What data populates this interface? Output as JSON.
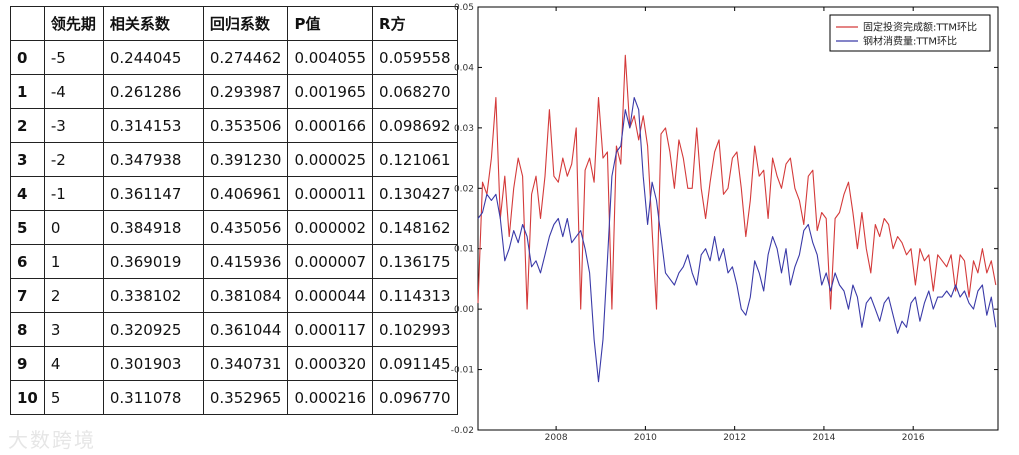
{
  "table": {
    "columns": [
      "",
      "领先期",
      "相关系数",
      "回归系数",
      "P值",
      "R方"
    ],
    "rows": [
      [
        "0",
        "-5",
        "0.244045",
        "0.274462",
        "0.004055",
        "0.059558"
      ],
      [
        "1",
        "-4",
        "0.261286",
        "0.293987",
        "0.001965",
        "0.068270"
      ],
      [
        "2",
        "-3",
        "0.314153",
        "0.353506",
        "0.000166",
        "0.098692"
      ],
      [
        "3",
        "-2",
        "0.347938",
        "0.391230",
        "0.000025",
        "0.121061"
      ],
      [
        "4",
        "-1",
        "0.361147",
        "0.406961",
        "0.000011",
        "0.130427"
      ],
      [
        "5",
        "0",
        "0.384918",
        "0.435056",
        "0.000002",
        "0.148162"
      ],
      [
        "6",
        "1",
        "0.369019",
        "0.415936",
        "0.000007",
        "0.136175"
      ],
      [
        "7",
        "2",
        "0.338102",
        "0.381084",
        "0.000044",
        "0.114313"
      ],
      [
        "8",
        "3",
        "0.320925",
        "0.361044",
        "0.000117",
        "0.102993"
      ],
      [
        "9",
        "4",
        "0.301903",
        "0.340731",
        "0.000320",
        "0.091145"
      ],
      [
        "10",
        "5",
        "0.311078",
        "0.352965",
        "0.000216",
        "0.096770"
      ]
    ]
  },
  "chart_data": {
    "type": "line",
    "title": "",
    "xlabel": "",
    "ylabel": "",
    "xlim": [
      2006.25,
      2017.9
    ],
    "ylim": [
      -0.02,
      0.05
    ],
    "x_ticks": [
      "2008",
      "2010",
      "2012",
      "2014",
      "2016"
    ],
    "y_ticks": [
      "0.05",
      "0.04",
      "0.03",
      "0.02",
      "0.01",
      "0.00",
      "-0.01",
      "-0.02"
    ],
    "y_tick_values": [
      0.05,
      0.04,
      0.03,
      0.02,
      0.01,
      0.0,
      -0.01,
      -0.02
    ],
    "grid": false,
    "legend_position": "top-right",
    "series": [
      {
        "name": "固定投资完成额:TTM环比",
        "color": "#d43a3a",
        "points": [
          [
            2006.25,
            0.001
          ],
          [
            2006.35,
            0.021
          ],
          [
            2006.45,
            0.019
          ],
          [
            2006.55,
            0.025
          ],
          [
            2006.65,
            0.035
          ],
          [
            2006.75,
            0.015
          ],
          [
            2006.85,
            0.022
          ],
          [
            2006.95,
            0.012
          ],
          [
            2007.05,
            0.02
          ],
          [
            2007.15,
            0.025
          ],
          [
            2007.25,
            0.022
          ],
          [
            2007.35,
            0.0
          ],
          [
            2007.45,
            0.019
          ],
          [
            2007.55,
            0.022
          ],
          [
            2007.65,
            0.015
          ],
          [
            2007.75,
            0.022
          ],
          [
            2007.85,
            0.033
          ],
          [
            2007.95,
            0.022
          ],
          [
            2008.05,
            0.021
          ],
          [
            2008.15,
            0.025
          ],
          [
            2008.25,
            0.022
          ],
          [
            2008.35,
            0.024
          ],
          [
            2008.45,
            0.03
          ],
          [
            2008.55,
            0.0
          ],
          [
            2008.65,
            0.023
          ],
          [
            2008.75,
            0.025
          ],
          [
            2008.85,
            0.021
          ],
          [
            2008.95,
            0.035
          ],
          [
            2009.05,
            0.025
          ],
          [
            2009.15,
            0.026
          ],
          [
            2009.25,
            0.0
          ],
          [
            2009.35,
            0.027
          ],
          [
            2009.45,
            0.024
          ],
          [
            2009.55,
            0.042
          ],
          [
            2009.65,
            0.03
          ],
          [
            2009.75,
            0.032
          ],
          [
            2009.85,
            0.028
          ],
          [
            2009.95,
            0.032
          ],
          [
            2010.05,
            0.027
          ],
          [
            2010.15,
            0.013
          ],
          [
            2010.25,
            0.0
          ],
          [
            2010.35,
            0.029
          ],
          [
            2010.45,
            0.03
          ],
          [
            2010.55,
            0.026
          ],
          [
            2010.65,
            0.02
          ],
          [
            2010.75,
            0.028
          ],
          [
            2010.85,
            0.025
          ],
          [
            2010.95,
            0.02
          ],
          [
            2011.05,
            0.02
          ],
          [
            2011.15,
            0.03
          ],
          [
            2011.25,
            0.02
          ],
          [
            2011.35,
            0.015
          ],
          [
            2011.45,
            0.021
          ],
          [
            2011.55,
            0.026
          ],
          [
            2011.65,
            0.028
          ],
          [
            2011.75,
            0.019
          ],
          [
            2011.85,
            0.02
          ],
          [
            2011.95,
            0.025
          ],
          [
            2012.05,
            0.026
          ],
          [
            2012.15,
            0.02
          ],
          [
            2012.25,
            0.012
          ],
          [
            2012.35,
            0.018
          ],
          [
            2012.45,
            0.027
          ],
          [
            2012.55,
            0.022
          ],
          [
            2012.65,
            0.023
          ],
          [
            2012.75,
            0.015
          ],
          [
            2012.85,
            0.025
          ],
          [
            2012.95,
            0.022
          ],
          [
            2013.05,
            0.02
          ],
          [
            2013.15,
            0.024
          ],
          [
            2013.25,
            0.025
          ],
          [
            2013.35,
            0.02
          ],
          [
            2013.45,
            0.018
          ],
          [
            2013.55,
            0.014
          ],
          [
            2013.65,
            0.022
          ],
          [
            2013.75,
            0.023
          ],
          [
            2013.85,
            0.013
          ],
          [
            2013.95,
            0.016
          ],
          [
            2014.05,
            0.015
          ],
          [
            2014.15,
            0.0
          ],
          [
            2014.25,
            0.015
          ],
          [
            2014.35,
            0.016
          ],
          [
            2014.45,
            0.019
          ],
          [
            2014.55,
            0.021
          ],
          [
            2014.65,
            0.016
          ],
          [
            2014.75,
            0.01
          ],
          [
            2014.85,
            0.016
          ],
          [
            2014.95,
            0.01
          ],
          [
            2015.05,
            0.006
          ],
          [
            2015.15,
            0.014
          ],
          [
            2015.25,
            0.012
          ],
          [
            2015.35,
            0.015
          ],
          [
            2015.45,
            0.014
          ],
          [
            2015.55,
            0.01
          ],
          [
            2015.65,
            0.012
          ],
          [
            2015.75,
            0.011
          ],
          [
            2015.85,
            0.009
          ],
          [
            2015.95,
            0.01
          ],
          [
            2016.05,
            0.004
          ],
          [
            2016.15,
            0.01
          ],
          [
            2016.25,
            0.008
          ],
          [
            2016.35,
            0.009
          ],
          [
            2016.45,
            0.003
          ],
          [
            2016.55,
            0.009
          ],
          [
            2016.65,
            0.008
          ],
          [
            2016.75,
            0.007
          ],
          [
            2016.85,
            0.009
          ],
          [
            2016.95,
            0.003
          ],
          [
            2017.05,
            0.009
          ],
          [
            2017.15,
            0.008
          ],
          [
            2017.25,
            0.002
          ],
          [
            2017.35,
            0.008
          ],
          [
            2017.45,
            0.006
          ],
          [
            2017.55,
            0.01
          ],
          [
            2017.65,
            0.006
          ],
          [
            2017.75,
            0.008
          ],
          [
            2017.85,
            0.004
          ]
        ]
      },
      {
        "name": "钢材消费量:TTM环比",
        "color": "#3a3aa8",
        "points": [
          [
            2006.25,
            0.015
          ],
          [
            2006.35,
            0.016
          ],
          [
            2006.45,
            0.019
          ],
          [
            2006.55,
            0.018
          ],
          [
            2006.65,
            0.019
          ],
          [
            2006.75,
            0.015
          ],
          [
            2006.85,
            0.008
          ],
          [
            2006.95,
            0.01
          ],
          [
            2007.05,
            0.013
          ],
          [
            2007.15,
            0.011
          ],
          [
            2007.25,
            0.014
          ],
          [
            2007.35,
            0.012
          ],
          [
            2007.45,
            0.007
          ],
          [
            2007.55,
            0.008
          ],
          [
            2007.65,
            0.006
          ],
          [
            2007.75,
            0.009
          ],
          [
            2007.85,
            0.012
          ],
          [
            2007.95,
            0.014
          ],
          [
            2008.05,
            0.015
          ],
          [
            2008.15,
            0.012
          ],
          [
            2008.25,
            0.015
          ],
          [
            2008.35,
            0.011
          ],
          [
            2008.45,
            0.012
          ],
          [
            2008.55,
            0.013
          ],
          [
            2008.65,
            0.01
          ],
          [
            2008.75,
            0.006
          ],
          [
            2008.85,
            -0.005
          ],
          [
            2008.95,
            -0.012
          ],
          [
            2009.05,
            -0.005
          ],
          [
            2009.15,
            0.008
          ],
          [
            2009.25,
            0.022
          ],
          [
            2009.35,
            0.026
          ],
          [
            2009.45,
            0.027
          ],
          [
            2009.55,
            0.033
          ],
          [
            2009.65,
            0.03
          ],
          [
            2009.75,
            0.035
          ],
          [
            2009.85,
            0.033
          ],
          [
            2009.95,
            0.022
          ],
          [
            2010.05,
            0.014
          ],
          [
            2010.15,
            0.021
          ],
          [
            2010.25,
            0.018
          ],
          [
            2010.35,
            0.012
          ],
          [
            2010.45,
            0.006
          ],
          [
            2010.55,
            0.005
          ],
          [
            2010.65,
            0.004
          ],
          [
            2010.75,
            0.006
          ],
          [
            2010.85,
            0.007
          ],
          [
            2010.95,
            0.009
          ],
          [
            2011.05,
            0.006
          ],
          [
            2011.15,
            0.004
          ],
          [
            2011.25,
            0.009
          ],
          [
            2011.35,
            0.01
          ],
          [
            2011.45,
            0.008
          ],
          [
            2011.55,
            0.012
          ],
          [
            2011.65,
            0.008
          ],
          [
            2011.75,
            0.01
          ],
          [
            2011.85,
            0.006
          ],
          [
            2011.95,
            0.007
          ],
          [
            2012.05,
            0.004
          ],
          [
            2012.15,
            0.0
          ],
          [
            2012.25,
            -0.001
          ],
          [
            2012.35,
            0.002
          ],
          [
            2012.45,
            0.008
          ],
          [
            2012.55,
            0.006
          ],
          [
            2012.65,
            0.003
          ],
          [
            2012.75,
            0.009
          ],
          [
            2012.85,
            0.012
          ],
          [
            2012.95,
            0.01
          ],
          [
            2013.05,
            0.006
          ],
          [
            2013.15,
            0.01
          ],
          [
            2013.25,
            0.004
          ],
          [
            2013.35,
            0.007
          ],
          [
            2013.45,
            0.009
          ],
          [
            2013.55,
            0.013
          ],
          [
            2013.65,
            0.014
          ],
          [
            2013.75,
            0.011
          ],
          [
            2013.85,
            0.009
          ],
          [
            2013.95,
            0.004
          ],
          [
            2014.05,
            0.006
          ],
          [
            2014.15,
            0.003
          ],
          [
            2014.25,
            0.006
          ],
          [
            2014.35,
            0.004
          ],
          [
            2014.45,
            0.003
          ],
          [
            2014.55,
            0.0
          ],
          [
            2014.65,
            0.004
          ],
          [
            2014.75,
            0.002
          ],
          [
            2014.85,
            -0.003
          ],
          [
            2014.95,
            0.001
          ],
          [
            2015.05,
            0.002
          ],
          [
            2015.15,
            0.0
          ],
          [
            2015.25,
            -0.002
          ],
          [
            2015.35,
            0.001
          ],
          [
            2015.45,
            0.002
          ],
          [
            2015.55,
            -0.001
          ],
          [
            2015.65,
            -0.004
          ],
          [
            2015.75,
            -0.002
          ],
          [
            2015.85,
            -0.003
          ],
          [
            2015.95,
            0.001
          ],
          [
            2016.05,
            0.002
          ],
          [
            2016.15,
            -0.002
          ],
          [
            2016.25,
            0.001
          ],
          [
            2016.35,
            0.003
          ],
          [
            2016.45,
            0.0
          ],
          [
            2016.55,
            0.002
          ],
          [
            2016.65,
            0.002
          ],
          [
            2016.75,
            0.003
          ],
          [
            2016.85,
            0.002
          ],
          [
            2016.95,
            0.004
          ],
          [
            2017.05,
            0.002
          ],
          [
            2017.15,
            0.003
          ],
          [
            2017.25,
            0.001
          ],
          [
            2017.35,
            0.0
          ],
          [
            2017.45,
            0.003
          ],
          [
            2017.55,
            0.004
          ],
          [
            2017.65,
            -0.001
          ],
          [
            2017.75,
            0.002
          ],
          [
            2017.85,
            -0.003
          ]
        ]
      }
    ]
  },
  "watermark": "大数跨境"
}
